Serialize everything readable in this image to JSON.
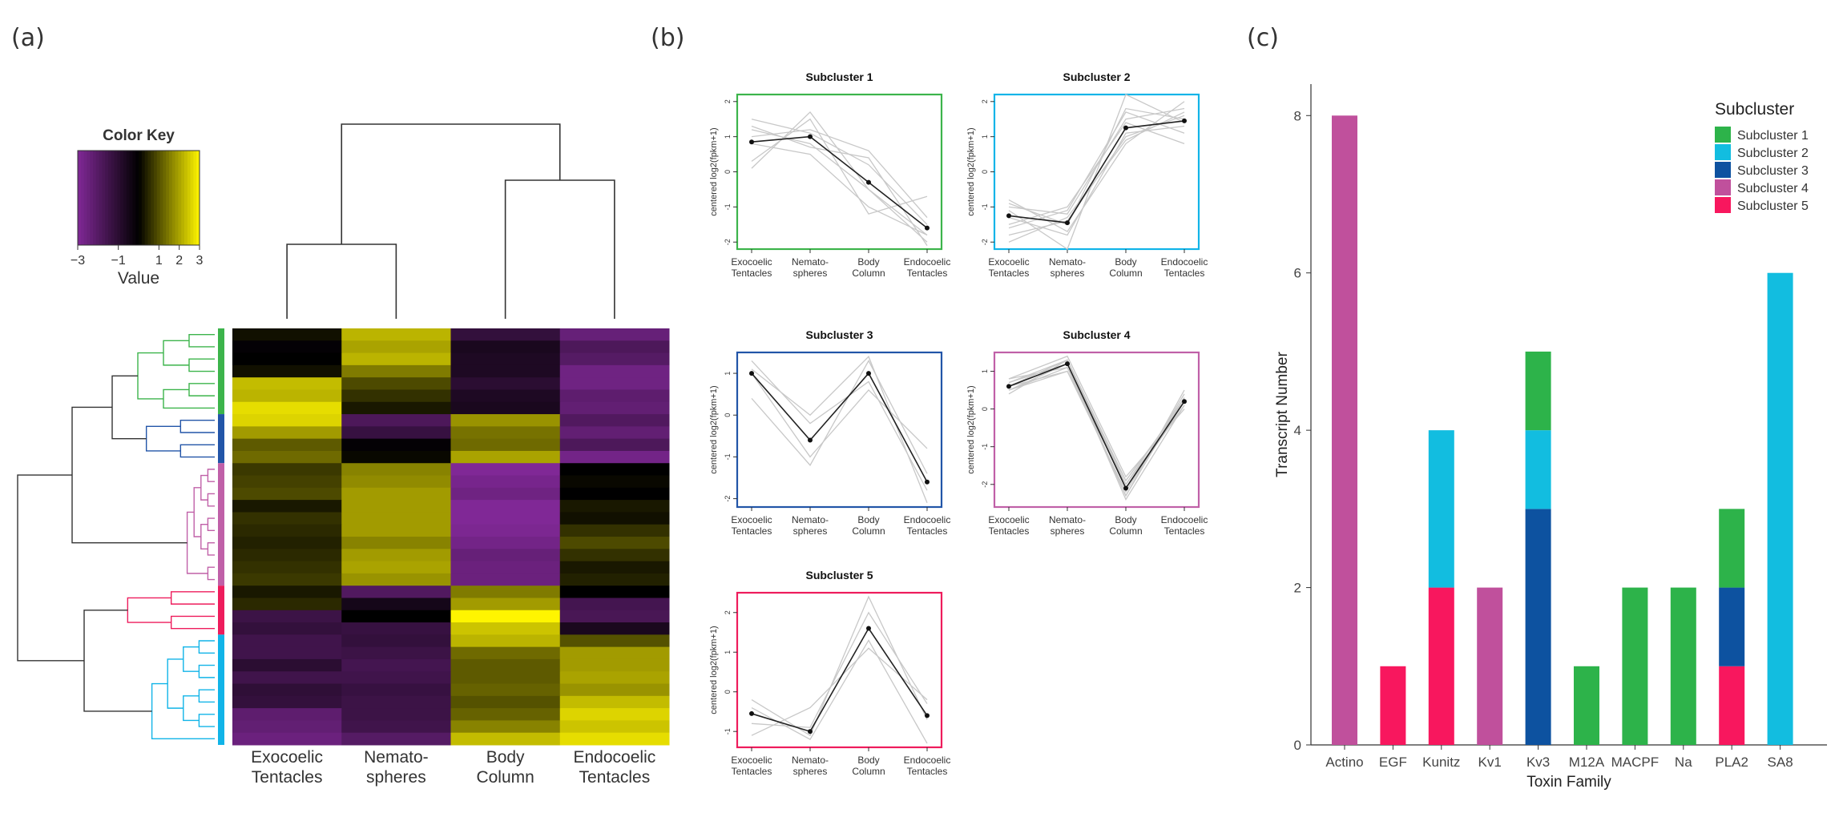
{
  "panel_labels": [
    "(a)",
    "(b)",
    "(c)"
  ],
  "heatmap": {
    "color_key_title": "Color Key",
    "color_key_ticks": [
      "−3",
      "−1",
      "1",
      "2",
      "3"
    ],
    "color_key_tick_values": [
      -3,
      -1,
      1,
      2,
      3
    ],
    "color_key_label": "Value",
    "columns": [
      "Exocoelic\nTentacles",
      "Nemato-\nspheres",
      "Body\nColumn",
      "Endocoelic\nTentacles"
    ],
    "row_groups": [
      {
        "color": "#3cb44b",
        "rows": 7
      },
      {
        "color": "#2255a8",
        "rows": 4
      },
      {
        "color": "#c060a8",
        "rows": 10
      },
      {
        "color": "#ee1c5c",
        "rows": 4
      },
      {
        "color": "#11b4e8",
        "rows": 9
      }
    ],
    "values": [
      [
        0.2,
        2.2,
        -1.2,
        -2.4
      ],
      [
        -0.1,
        2.0,
        -0.6,
        -1.8
      ],
      [
        0.0,
        2.2,
        -0.7,
        -2.0
      ],
      [
        0.2,
        1.5,
        -0.7,
        -2.6
      ],
      [
        2.3,
        0.9,
        -1.0,
        -2.6
      ],
      [
        2.2,
        0.6,
        -0.7,
        -2.2
      ],
      [
        2.7,
        0.3,
        -0.6,
        -2.3
      ],
      [
        2.6,
        -1.8,
        1.8,
        -1.9
      ],
      [
        1.9,
        -1.3,
        1.4,
        -2.3
      ],
      [
        1.1,
        -0.1,
        1.3,
        -1.8
      ],
      [
        1.3,
        0.1,
        2.0,
        -2.7
      ],
      [
        0.7,
        1.6,
        -3.0,
        0.0
      ],
      [
        0.8,
        1.7,
        -2.8,
        0.1
      ],
      [
        0.9,
        1.9,
        -2.6,
        0.0
      ],
      [
        0.3,
        1.9,
        -3.0,
        0.3
      ],
      [
        0.6,
        1.9,
        -3.0,
        0.2
      ],
      [
        0.5,
        1.9,
        -2.9,
        0.6
      ],
      [
        0.4,
        1.6,
        -2.7,
        0.9
      ],
      [
        0.5,
        1.9,
        -2.4,
        0.6
      ],
      [
        0.6,
        2.0,
        -2.5,
        0.3
      ],
      [
        0.7,
        1.8,
        -2.5,
        0.4
      ],
      [
        0.3,
        -1.9,
        1.5,
        0.0
      ],
      [
        0.5,
        -0.5,
        1.9,
        -1.6
      ],
      [
        -1.4,
        0.0,
        3.0,
        -1.7
      ],
      [
        -1.2,
        -1.3,
        2.4,
        -0.6
      ],
      [
        -1.5,
        -1.2,
        2.2,
        1.0
      ],
      [
        -1.5,
        -1.4,
        1.3,
        1.9
      ],
      [
        -1.0,
        -1.6,
        1.1,
        1.9
      ],
      [
        -1.5,
        -1.5,
        1.1,
        2.0
      ],
      [
        -1.1,
        -1.3,
        1.2,
        1.8
      ],
      [
        -1.2,
        -1.4,
        1.0,
        2.3
      ],
      [
        -2.2,
        -1.4,
        1.2,
        2.6
      ],
      [
        -2.3,
        -1.5,
        1.6,
        2.4
      ],
      [
        -2.5,
        -2.0,
        2.3,
        2.7
      ]
    ]
  },
  "subclusters": [
    {
      "title": "Subcluster 1",
      "color": "#3cb44b",
      "ylabel": "centered log2(fpkm+1)",
      "yticks": [
        2,
        1,
        0,
        -1,
        -2
      ],
      "ylim": [
        -2.2,
        2.2
      ],
      "xticks": [
        "Exocoelic\nTentacles",
        "Nemato-\nspheres",
        "Body\nColumn",
        "Endocoelic\nTentacles"
      ],
      "mean": [
        0.85,
        1.0,
        -0.3,
        -1.6
      ],
      "members": [
        [
          1.5,
          1.1,
          0.2,
          -1.5
        ],
        [
          0.1,
          1.7,
          -0.5,
          -2.0
        ],
        [
          1.3,
          0.7,
          0.4,
          -2.1
        ],
        [
          0.8,
          0.5,
          -1.0,
          -1.8
        ],
        [
          1.0,
          1.2,
          0.6,
          -1.3
        ],
        [
          0.3,
          1.5,
          -1.2,
          -0.7
        ],
        [
          1.2,
          0.8,
          -0.5,
          -1.8
        ]
      ]
    },
    {
      "title": "Subcluster 2",
      "color": "#11b4e8",
      "ylabel": "centered log2(fpkm+1)",
      "yticks": [
        2,
        1,
        0,
        -1,
        -2
      ],
      "ylim": [
        -2.2,
        2.2
      ],
      "xticks": [
        "Exocoelic\nTentacles",
        "Nemato-\nspheres",
        "Body\nColumn",
        "Endocoelic\nTentacles"
      ],
      "mean": [
        -1.25,
        -1.45,
        1.25,
        1.45
      ],
      "members": [
        [
          -1.0,
          -1.2,
          1.5,
          1.8
        ],
        [
          -1.8,
          -1.4,
          1.0,
          1.6
        ],
        [
          -1.1,
          -2.2,
          2.2,
          1.4
        ],
        [
          -1.5,
          -1.0,
          1.4,
          0.8
        ],
        [
          -0.8,
          -1.7,
          0.8,
          2.0
        ],
        [
          -1.6,
          -1.1,
          1.7,
          1.1
        ],
        [
          -2.0,
          -1.3,
          0.9,
          1.7
        ],
        [
          -1.3,
          -1.8,
          1.1,
          1.3
        ],
        [
          -0.9,
          -1.5,
          1.8,
          1.5
        ]
      ]
    },
    {
      "title": "Subcluster 3",
      "color": "#2255a8",
      "ylabel": "centered log2(fpkm+1)",
      "yticks": [
        1,
        0,
        -1,
        -2
      ],
      "ylim": [
        -2.2,
        1.5
      ],
      "xticks": [
        "Exocoelic\nTentacles",
        "Nemato-\nspheres",
        "Body\nColumn",
        "Endocoelic\nTentacles"
      ],
      "mean": [
        1.0,
        -0.6,
        1.0,
        -1.6
      ],
      "members": [
        [
          1.3,
          -0.2,
          0.8,
          -1.8
        ],
        [
          0.4,
          -1.2,
          1.3,
          -1.4
        ],
        [
          1.1,
          0.0,
          1.4,
          -2.1
        ],
        [
          1.0,
          -1.0,
          0.6,
          -0.8
        ]
      ]
    },
    {
      "title": "Subcluster 4",
      "color": "#c060a8",
      "ylabel": "centered log2(fpkm+1)",
      "yticks": [
        1,
        0,
        -1,
        -2
      ],
      "ylim": [
        -2.6,
        1.5
      ],
      "xticks": [
        "Exocoelic\nTentacles",
        "Nemato-\nspheres",
        "Body\nColumn",
        "Endocoelic\nTentacles"
      ],
      "mean": [
        0.6,
        1.2,
        -2.1,
        0.2
      ],
      "members": [
        [
          0.7,
          1.3,
          -2.0,
          0.1
        ],
        [
          0.5,
          1.1,
          -2.3,
          0.3
        ],
        [
          0.8,
          1.4,
          -1.8,
          0.0
        ],
        [
          0.6,
          1.0,
          -2.2,
          0.4
        ],
        [
          0.4,
          1.3,
          -1.9,
          0.2
        ],
        [
          0.7,
          1.2,
          -2.4,
          0.1
        ],
        [
          0.5,
          1.0,
          -2.0,
          0.3
        ],
        [
          0.6,
          1.3,
          -2.1,
          0.1
        ],
        [
          0.8,
          1.1,
          -1.9,
          0.2
        ],
        [
          0.5,
          1.2,
          -2.3,
          0.5
        ]
      ]
    },
    {
      "title": "Subcluster 5",
      "color": "#ee1c5c",
      "ylabel": "centered log2(fpkm+1)",
      "yticks": [
        2,
        1,
        0,
        -1
      ],
      "ylim": [
        -1.4,
        2.5
      ],
      "xticks": [
        "Exocoelic\nTentacles",
        "Nemato-\nspheres",
        "Body\nColumn",
        "Endocoelic\nTentacles"
      ],
      "mean": [
        -0.55,
        -1.0,
        1.6,
        -0.6
      ],
      "members": [
        [
          -0.2,
          -1.1,
          2.4,
          -0.7
        ],
        [
          -1.1,
          -0.4,
          1.1,
          -0.2
        ],
        [
          -0.4,
          -1.2,
          1.3,
          -1.3
        ],
        [
          -0.8,
          -0.9,
          2.0,
          -0.3
        ]
      ]
    }
  ],
  "chart_data": {
    "type": "bar",
    "stacked": true,
    "categories": [
      "Actino",
      "EGF",
      "Kunitz",
      "Kv1",
      "Kv3",
      "M12A",
      "MACPF",
      "Na",
      "PLA2",
      "SA8"
    ],
    "series": [
      {
        "name": "Subcluster 1",
        "color": "#2db34a",
        "values": [
          0,
          0,
          0,
          0,
          1,
          1,
          2,
          2,
          1,
          0
        ]
      },
      {
        "name": "Subcluster 2",
        "color": "#12bde0",
        "values": [
          0,
          0,
          2,
          0,
          1,
          0,
          0,
          0,
          0,
          6
        ]
      },
      {
        "name": "Subcluster 3",
        "color": "#0d52a0",
        "values": [
          0,
          0,
          0,
          0,
          3,
          0,
          0,
          0,
          1,
          0
        ]
      },
      {
        "name": "Subcluster 4",
        "color": "#c0509c",
        "values": [
          8,
          0,
          0,
          2,
          0,
          0,
          0,
          0,
          0,
          0
        ]
      },
      {
        "name": "Subcluster 5",
        "color": "#f8175e",
        "values": [
          0,
          1,
          2,
          0,
          0,
          0,
          0,
          0,
          1,
          0
        ]
      }
    ],
    "stack_order": [
      "Subcluster 5",
      "Subcluster 3",
      "Subcluster 2",
      "Subcluster 1",
      "Subcluster 4"
    ],
    "xlabel": "Toxin Family",
    "ylabel": "Transcript Number",
    "yticks": [
      0,
      2,
      4,
      6,
      8
    ],
    "ylim": [
      0,
      8.4
    ],
    "legend_title": "Subcluster",
    "legend_position": "top-right",
    "grid": false
  }
}
